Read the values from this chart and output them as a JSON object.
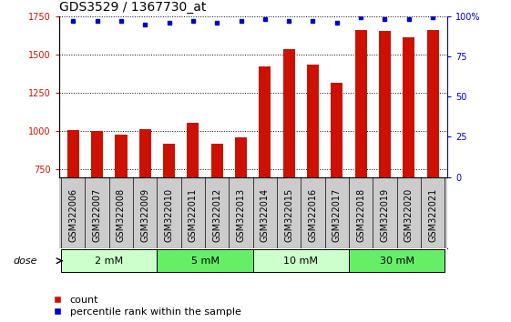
{
  "title": "GDS3529 / 1367730_at",
  "categories": [
    "GSM322006",
    "GSM322007",
    "GSM322008",
    "GSM322009",
    "GSM322010",
    "GSM322011",
    "GSM322012",
    "GSM322013",
    "GSM322014",
    "GSM322015",
    "GSM322016",
    "GSM322017",
    "GSM322018",
    "GSM322019",
    "GSM322020",
    "GSM322021"
  ],
  "counts": [
    1007,
    1002,
    975,
    1015,
    915,
    1057,
    920,
    960,
    1420,
    1535,
    1435,
    1315,
    1660,
    1655,
    1610,
    1660
  ],
  "percentiles": [
    97,
    97,
    97,
    95,
    96,
    97,
    96,
    97,
    98,
    97,
    97,
    96,
    99,
    98,
    98,
    99
  ],
  "bar_color": "#cc1100",
  "dot_color": "#0000cc",
  "ylim_left": [
    700,
    1750
  ],
  "ylim_right": [
    0,
    100
  ],
  "yticks_left": [
    750,
    1000,
    1250,
    1500,
    1750
  ],
  "yticks_right": [
    0,
    25,
    50,
    75,
    100
  ],
  "dose_groups": [
    {
      "label": "2 mM",
      "start": 0,
      "end": 4,
      "color": "#ccffcc"
    },
    {
      "label": "5 mM",
      "start": 4,
      "end": 8,
      "color": "#66ee66"
    },
    {
      "label": "10 mM",
      "start": 8,
      "end": 12,
      "color": "#ccffcc"
    },
    {
      "label": "30 mM",
      "start": 12,
      "end": 16,
      "color": "#66ee66"
    }
  ],
  "xtick_bg_color": "#cccccc",
  "plot_bg_color": "#ffffff",
  "title_fontsize": 10,
  "tick_fontsize": 7,
  "legend_fontsize": 8,
  "bar_width": 0.5
}
